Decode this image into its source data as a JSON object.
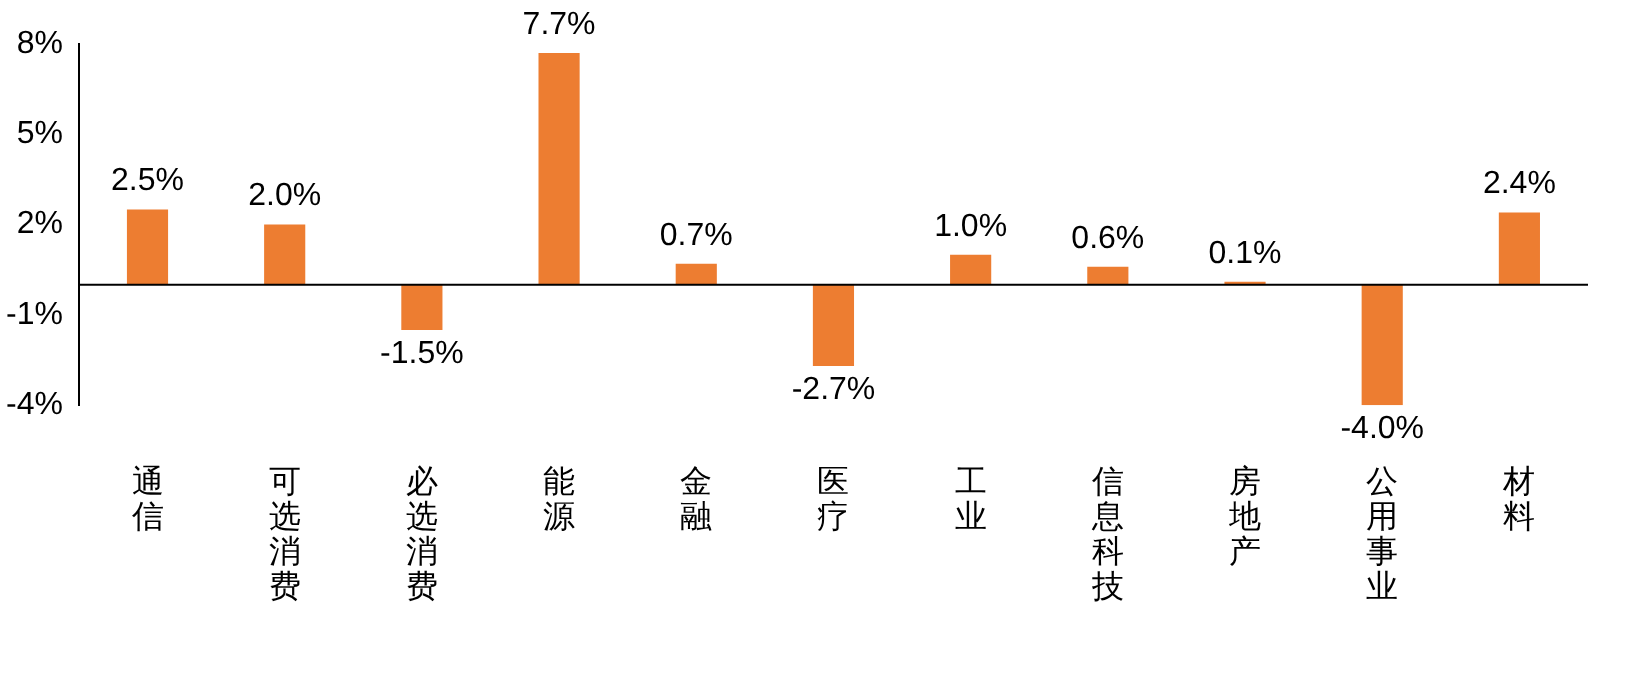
{
  "chart_data": {
    "type": "bar",
    "categories": [
      "通信",
      "可选消费",
      "必选消费",
      "能源",
      "金融",
      "医疗",
      "工业",
      "信息科技",
      "房地产",
      "公用事业",
      "材料"
    ],
    "values": [
      2.5,
      2.0,
      -1.5,
      7.7,
      0.7,
      -2.7,
      1.0,
      0.6,
      0.1,
      -4.0,
      2.4
    ],
    "value_labels": [
      "2.5%",
      "2.0%",
      "-1.5%",
      "7.7%",
      "0.7%",
      "-2.7%",
      "1.0%",
      "0.6%",
      "0.1%",
      "-4.0%",
      "2.4%"
    ],
    "color": "#ed7d31",
    "ylim": [
      -4,
      8
    ],
    "yticks": [
      {
        "value": -4,
        "label": "-4%"
      },
      {
        "value": -1,
        "label": "-1%"
      },
      {
        "value": 2,
        "label": "2%"
      },
      {
        "value": 5,
        "label": "5%"
      },
      {
        "value": 8,
        "label": "8%"
      }
    ],
    "grid": false,
    "legend": false
  }
}
